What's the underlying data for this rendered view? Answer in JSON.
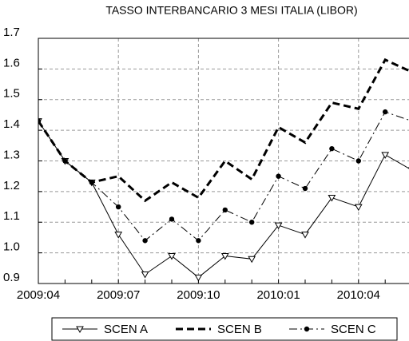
{
  "chart_data": {
    "type": "line",
    "title": "TASSO INTERBANCARIO 3 MESI ITALIA (LIBOR)",
    "categories": [
      "2009:04",
      null,
      null,
      "2009:07",
      null,
      null,
      "2009:10",
      null,
      null,
      "2010:01",
      null,
      null,
      "2010:04",
      null,
      null
    ],
    "series": [
      {
        "name": "SCEN A",
        "color": "#000000",
        "values": [
          1.43,
          1.3,
          1.23,
          1.06,
          0.93,
          0.99,
          0.92,
          0.99,
          0.98,
          1.09,
          1.06,
          1.18,
          1.15,
          1.32,
          1.27
        ]
      },
      {
        "name": "SCEN B",
        "color": "#000000",
        "values": [
          1.43,
          1.3,
          1.23,
          1.25,
          1.17,
          1.23,
          1.18,
          1.3,
          1.24,
          1.41,
          1.36,
          1.49,
          1.47,
          1.63,
          1.59
        ]
      },
      {
        "name": "SCEN C",
        "color": "#000000",
        "values": [
          1.43,
          1.3,
          1.23,
          1.15,
          1.04,
          1.11,
          1.04,
          1.14,
          1.1,
          1.25,
          1.21,
          1.34,
          1.3,
          1.46,
          1.43
        ]
      }
    ],
    "ylim": [
      0.9,
      1.7
    ],
    "yticks": [
      0.9,
      {
        "value": 1,
        "label": "1.0"
      },
      1.1,
      1.2,
      1.3,
      1.4,
      1.5,
      1.6,
      1.7
    ],
    "grid": true,
    "legend": "bottom"
  }
}
